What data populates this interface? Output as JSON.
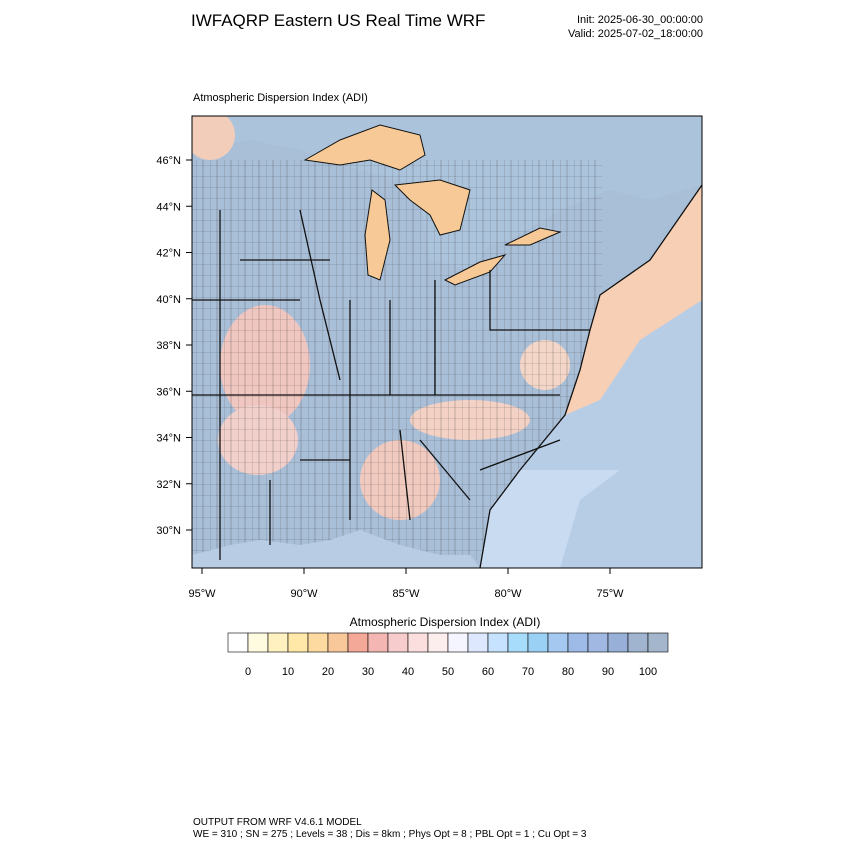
{
  "header": {
    "title": "IWFAQRP Eastern US Real Time WRF",
    "init": "Init: 2025-06-30_00:00:00",
    "valid": "Valid: 2025-07-02_18:00:00"
  },
  "map": {
    "title": "Atmospheric Dispersion Index   (ADI)",
    "lat_labels": [
      "46°N",
      "44°N",
      "42°N",
      "40°N",
      "38°N",
      "36°N",
      "34°N",
      "32°N",
      "30°N"
    ],
    "lon_labels": [
      "95°W",
      "90°W",
      "85°W",
      "80°W",
      "75°W"
    ]
  },
  "colorbar": {
    "title": "Atmospheric Dispersion Index  (ADI)",
    "labels": [
      0,
      10,
      20,
      30,
      40,
      50,
      60,
      70,
      80,
      90,
      100
    ],
    "colors": [
      "#ffffff",
      "#fffbe0",
      "#fff2c0",
      "#ffe8a8",
      "#fddaa0",
      "#f8c79a",
      "#f4a898",
      "#f3b6b2",
      "#f7cccc",
      "#fbdede",
      "#fdeeee",
      "#f5f5ff",
      "#dde8ff",
      "#c6e2ff",
      "#a8dcfb",
      "#9bd0f5",
      "#a4c8f0",
      "#9ebbe8",
      "#a0b8e2",
      "#98b0d8",
      "#a0b4d0",
      "#a4b6cc"
    ]
  },
  "footer": {
    "line1": "OUTPUT FROM WRF V4.6.1 MODEL",
    "line2": "WE = 310 ; SN = 275 ; Levels = 38 ; Dis = 8km ; Phys Opt = 8 ; PBL Opt = 1 ; Cu Opt = 3"
  }
}
